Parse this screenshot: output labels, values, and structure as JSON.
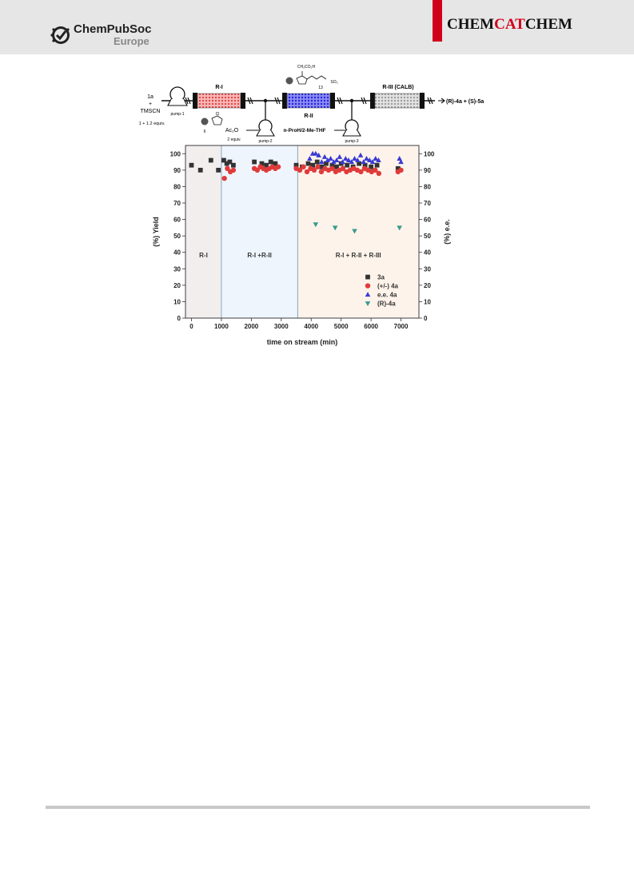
{
  "header": {
    "publisher_line1": "ChemPubSoc",
    "publisher_line2": "Europe",
    "journal_part1": "CHEM",
    "journal_part2": "CAT",
    "journal_part3": "CHEM",
    "accent_color": "#d0021b",
    "logo_icon": "check-seal-icon"
  },
  "scheme": {
    "feed_compound": "1a",
    "feed_plus": "+",
    "feed_reagent": "TMSCN",
    "feed_ratio": "1 + 1.2 equiv.",
    "pump1": "pump-1",
    "pump2": "pump-2",
    "pump3": "pump-3",
    "reactor1": "R-I",
    "reactor2": "R-II",
    "reactor3": "R-III (CALB)",
    "catalyst1_counterion": "Cl",
    "catalyst1_number": "6",
    "catalyst2_group": "CH₂CO₂H",
    "catalyst2_number": "13",
    "catalyst2_anion": "SO₃",
    "reagent2": "Ac₂O",
    "reagent2_equiv": "2 equiv.",
    "reagent3": "n-ProH/2-Me-THF",
    "product": "(R)-4a + (S)-5a"
  },
  "chart_data": {
    "type": "scatter",
    "xlabel": "time on stream (min)",
    "ylabel": "(%) Yield",
    "y2label": "(%) e.e.",
    "xlim": [
      -200,
      7600
    ],
    "ylim": [
      0,
      105
    ],
    "xticks": [
      0,
      1000,
      2000,
      3000,
      4000,
      5000,
      6000,
      7000
    ],
    "yticks": [
      0,
      10,
      20,
      30,
      40,
      50,
      60,
      70,
      80,
      90,
      100
    ],
    "legend_position": "bottom-right",
    "grid": false,
    "regions": [
      {
        "label": "R-I",
        "x_start": -200,
        "x_end": 1000,
        "color": "#f3eeee"
      },
      {
        "label": "R-I +R-II",
        "x_start": 1000,
        "x_end": 3550,
        "color": "#eef5fd"
      },
      {
        "label": "R-I + R-II + R-III",
        "x_start": 3550,
        "x_end": 7600,
        "color": "#fdf3ea"
      }
    ],
    "series": [
      {
        "name": "3a",
        "marker": "square",
        "color": "#333333",
        "x": [
          0,
          300,
          650,
          900,
          1080,
          1180,
          1280,
          1400,
          2100,
          2350,
          2500,
          2650,
          2800,
          3500,
          3700,
          3900,
          4050,
          4200,
          4350,
          4500,
          4700,
          4850,
          5000,
          5200,
          5400,
          5600,
          5800,
          6000,
          6200,
          6900
        ],
        "y": [
          93,
          90,
          96,
          90,
          96,
          94,
          95,
          93,
          95,
          94,
          93,
          95,
          94,
          93,
          92,
          94,
          93,
          95,
          92,
          94,
          93,
          92,
          94,
          93,
          92,
          94,
          93,
          92,
          93,
          91
        ]
      },
      {
        "name": "(+/-) 4a",
        "marker": "circle",
        "color": "#e03b3b",
        "x": [
          1100,
          1200,
          1300,
          1400,
          2100,
          2200,
          2300,
          2400,
          2500,
          2600,
          2700,
          2800,
          2900,
          3500,
          3620,
          3740,
          3860,
          3980,
          4100,
          4220,
          4340,
          4460,
          4580,
          4700,
          4820,
          4940,
          5060,
          5180,
          5300,
          5420,
          5540,
          5660,
          5780,
          5900,
          6020,
          6140,
          6260,
          6900,
          7000
        ],
        "y": [
          85,
          91,
          89,
          90,
          91,
          90,
          92,
          91,
          90,
          91,
          92,
          91,
          92,
          91,
          90,
          92,
          89,
          91,
          90,
          92,
          89,
          91,
          90,
          91,
          89,
          90,
          91,
          89,
          90,
          91,
          90,
          89,
          91,
          90,
          89,
          90,
          88,
          89,
          90
        ]
      },
      {
        "name": "e.e. 4a",
        "marker": "triangle-up",
        "color": "#3a3ad4",
        "x": [
          3950,
          4050,
          4150,
          4250,
          4350,
          4450,
          4550,
          4650,
          4750,
          4850,
          4950,
          5050,
          5150,
          5250,
          5350,
          5450,
          5550,
          5650,
          5750,
          5850,
          5950,
          6050,
          6150,
          6250,
          6950,
          7000
        ],
        "y": [
          97,
          100,
          100,
          99,
          95,
          98,
          96,
          97,
          95,
          96,
          98,
          95,
          97,
          96,
          95,
          97,
          96,
          99,
          95,
          97,
          96,
          95,
          97,
          96,
          97,
          95
        ]
      },
      {
        "name": "(R)-4a",
        "marker": "triangle-down",
        "color": "#3a9a8e",
        "x": [
          4150,
          4800,
          5450,
          6950
        ],
        "y": [
          57,
          55,
          53,
          55
        ]
      }
    ]
  }
}
